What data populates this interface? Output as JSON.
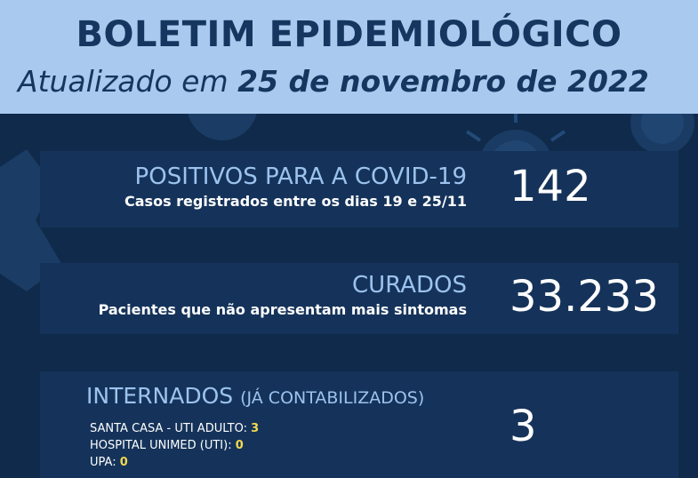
{
  "header": {
    "title": "BOLETIM EPIDEMIOLÓGICO",
    "subtitle_prefix": "Atualizado em ",
    "subtitle_date": "25 de novembro de 2022"
  },
  "positives": {
    "title": "POSITIVOS PARA A COVID-19",
    "description": "Casos registrados entre os dias 19 e 25/11",
    "value": "142"
  },
  "cured": {
    "title": "CURADOS",
    "description": "Pacientes que não apresentam mais sintomas",
    "value": "33.233"
  },
  "hospitalized": {
    "title": "INTERNADOS",
    "title_note": "(JÁ CONTABILIZADOS)",
    "value": "3",
    "items": [
      {
        "label": "SANTA CASA - UTI ADULTO: ",
        "value": "3"
      },
      {
        "label": "HOSPITAL UNIMED (UTI): ",
        "value": "0"
      },
      {
        "label": "UPA: ",
        "value": "0"
      }
    ]
  },
  "colors": {
    "header_bg": "#a9c9ee",
    "body_bg": "#0f2a4a",
    "card_bg": "#15335a",
    "title_text": "#14365f",
    "accent_label": "#9cc3ee",
    "highlight_value": "#f3d94e"
  }
}
